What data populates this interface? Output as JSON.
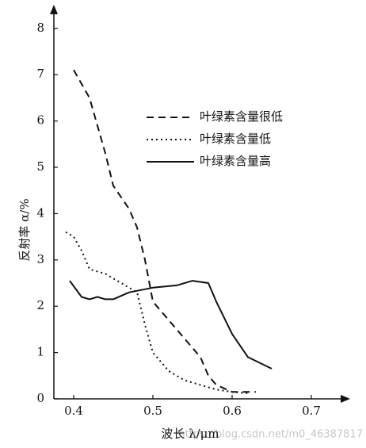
{
  "chart_data": {
    "type": "line",
    "y_label": "反射率 α/%",
    "x_label": "波长 λ/μm",
    "watermark": "https://blog.csdn.net/m0_46387817",
    "xlim": [
      0.375,
      0.75
    ],
    "ylim": [
      0,
      8.4
    ],
    "xticks": [
      0.4,
      0.5,
      0.6,
      0.7
    ],
    "yticks": [
      0,
      1,
      2,
      3,
      4,
      5,
      6,
      7,
      8
    ],
    "grid": false,
    "series": [
      {
        "name": "叶绿素含量很低",
        "color": "#111111",
        "dash": "dashed",
        "x": [
          0.4,
          0.42,
          0.44,
          0.45,
          0.47,
          0.48,
          0.49,
          0.5,
          0.52,
          0.54,
          0.56,
          0.57,
          0.58,
          0.6,
          0.63
        ],
        "values": [
          7.1,
          6.5,
          5.3,
          4.6,
          4.1,
          3.7,
          3.0,
          2.1,
          1.7,
          1.3,
          0.9,
          0.5,
          0.3,
          0.15,
          0.15
        ]
      },
      {
        "name": "叶绿素含量低",
        "color": "#111111",
        "dash": "dotted",
        "x": [
          0.39,
          0.4,
          0.41,
          0.42,
          0.44,
          0.46,
          0.48,
          0.49,
          0.5,
          0.52,
          0.54,
          0.56,
          0.58,
          0.6,
          0.62
        ],
        "values": [
          3.6,
          3.5,
          3.2,
          2.8,
          2.7,
          2.5,
          2.3,
          1.6,
          1.0,
          0.6,
          0.4,
          0.3,
          0.2,
          0.15,
          0.12
        ]
      },
      {
        "name": "叶绿素含量高",
        "color": "#111111",
        "dash": "solid",
        "x": [
          0.395,
          0.41,
          0.42,
          0.43,
          0.44,
          0.45,
          0.47,
          0.5,
          0.53,
          0.55,
          0.57,
          0.58,
          0.6,
          0.62,
          0.65
        ],
        "values": [
          2.55,
          2.2,
          2.15,
          2.2,
          2.15,
          2.15,
          2.3,
          2.4,
          2.45,
          2.55,
          2.5,
          2.1,
          1.4,
          0.9,
          0.65
        ]
      }
    ]
  }
}
